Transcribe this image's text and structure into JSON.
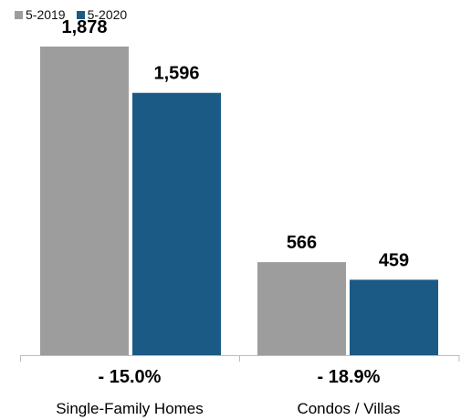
{
  "chart_data": {
    "type": "bar",
    "categories": [
      "Single-Family Homes",
      "Condos / Villas"
    ],
    "series": [
      {
        "name": "5-2019",
        "color": "#9d9d9d",
        "values": [
          1878,
          566
        ],
        "labels": [
          "1,878",
          "566"
        ]
      },
      {
        "name": "5-2020",
        "color": "#1b5a85",
        "values": [
          1596,
          459
        ],
        "labels": [
          "1,596",
          "459"
        ]
      }
    ],
    "changes": [
      "- 15.0%",
      "- 18.9%"
    ],
    "ylim": [
      0,
      2050
    ],
    "legend": "top-left",
    "grid": false
  }
}
